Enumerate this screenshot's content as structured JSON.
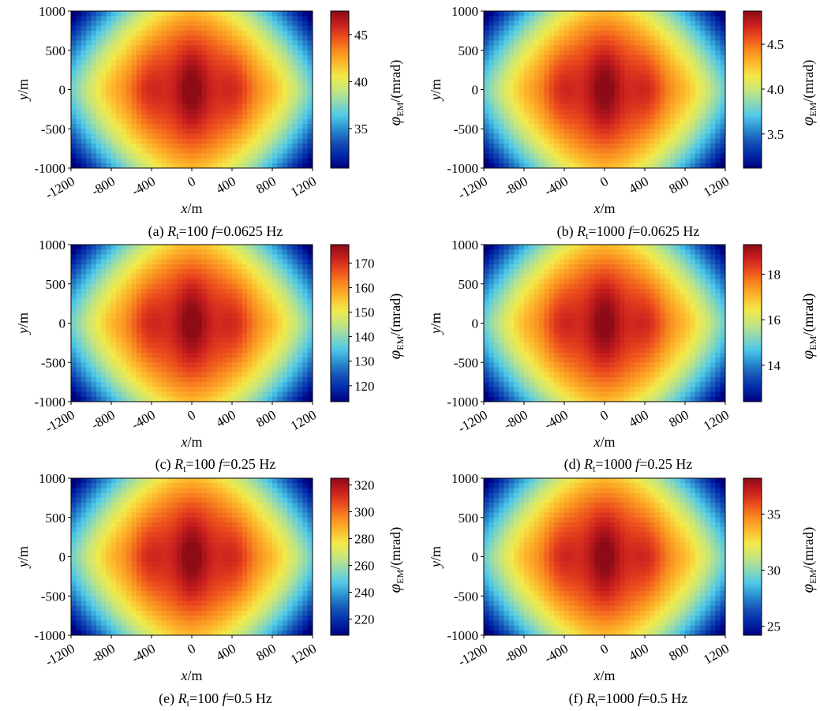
{
  "colormap": [
    "#00007f",
    "#0027a8",
    "#1652b8",
    "#2a8fd0",
    "#4fc8e8",
    "#8fd9b5",
    "#c8e67a",
    "#f2e94a",
    "#fdbb2d",
    "#f98a1f",
    "#ec4d1d",
    "#c81e1e",
    "#8c0b16"
  ],
  "chart_data": [
    {
      "id": "a",
      "type": "heatmap",
      "caption": {
        "prefix": "(a) ",
        "r_sym": "R",
        "r_sub": "t",
        "r_val": "=100 ",
        "f_sym": "f",
        "f_val": "=0.0625 Hz"
      },
      "xlabel": {
        "sym": "x",
        "unit": "/m"
      },
      "ylabel": {
        "sym": "y",
        "unit": "/m"
      },
      "cbar_label": {
        "sym": "φ",
        "sub": "EM",
        "unit": "/(mrad)"
      },
      "xlim": [
        -1200,
        1200
      ],
      "ylim": [
        -1000,
        1000
      ],
      "xticks": [
        -1200,
        -800,
        -400,
        0,
        400,
        800,
        1200
      ],
      "xtick_labels": [
        "-1200",
        "-800",
        "-400",
        "0",
        "400",
        "800",
        "1200"
      ],
      "yticks": [
        -1000,
        -500,
        0,
        500,
        1000
      ],
      "ytick_labels": [
        "-1000",
        "-500",
        "0",
        "500",
        "1000"
      ],
      "zlim": [
        30.8,
        47.5
      ],
      "cbar_ticks": [
        35,
        40,
        45
      ],
      "cbar_tick_labels": [
        "35",
        "40",
        "45"
      ]
    },
    {
      "id": "b",
      "type": "heatmap",
      "caption": {
        "prefix": "(b) ",
        "r_sym": "R",
        "r_sub": "t",
        "r_val": "=1000 ",
        "f_sym": "f",
        "f_val": "=0.0625 Hz"
      },
      "xlabel": {
        "sym": "x",
        "unit": "/m"
      },
      "ylabel": {
        "sym": "y",
        "unit": "/m"
      },
      "cbar_label": {
        "sym": "φ",
        "sub": "EM",
        "unit": "/(mrad)"
      },
      "xlim": [
        -1200,
        1200
      ],
      "ylim": [
        -1000,
        1000
      ],
      "xticks": [
        -1200,
        -800,
        -400,
        0,
        400,
        800,
        1200
      ],
      "xtick_labels": [
        "-1200",
        "-800",
        "-400",
        "0",
        "400",
        "800",
        "1200"
      ],
      "yticks": [
        -1000,
        -500,
        0,
        500,
        1000
      ],
      "ytick_labels": [
        "-1000",
        "-500",
        "0",
        "500",
        "1000"
      ],
      "zlim": [
        3.12,
        4.87
      ],
      "cbar_ticks": [
        3.5,
        4.0,
        4.5
      ],
      "cbar_tick_labels": [
        "3.5",
        "4.0",
        "4.5"
      ]
    },
    {
      "id": "c",
      "type": "heatmap",
      "caption": {
        "prefix": "(c) ",
        "r_sym": "R",
        "r_sub": "t",
        "r_val": "=100 ",
        "f_sym": "f",
        "f_val": "=0.25 Hz"
      },
      "xlabel": {
        "sym": "x",
        "unit": "/m"
      },
      "ylabel": {
        "sym": "y",
        "unit": "/m"
      },
      "cbar_label": {
        "sym": "φ",
        "sub": "EM",
        "unit": "/(mrad)"
      },
      "xlim": [
        -1200,
        1200
      ],
      "ylim": [
        -1000,
        1000
      ],
      "xticks": [
        -1200,
        -800,
        -400,
        0,
        400,
        800,
        1200
      ],
      "xtick_labels": [
        "-1200",
        "-800",
        "-400",
        "0",
        "400",
        "800",
        "1200"
      ],
      "yticks": [
        -1000,
        -500,
        0,
        500,
        1000
      ],
      "ytick_labels": [
        "-1000",
        "-500",
        "0",
        "500",
        "1000"
      ],
      "zlim": [
        113.5,
        177.5
      ],
      "cbar_ticks": [
        120,
        130,
        140,
        150,
        160,
        170
      ],
      "cbar_tick_labels": [
        "120",
        "130",
        "140",
        "150",
        "160",
        "170"
      ]
    },
    {
      "id": "d",
      "type": "heatmap",
      "caption": {
        "prefix": "(d) ",
        "r_sym": "R",
        "r_sub": "t",
        "r_val": "=1000 ",
        "f_sym": "f",
        "f_val": "=0.25 Hz"
      },
      "xlabel": {
        "sym": "x",
        "unit": "/m"
      },
      "ylabel": {
        "sym": "y",
        "unit": "/m"
      },
      "cbar_label": {
        "sym": "φ",
        "sub": "EM",
        "unit": "/(mrad)"
      },
      "xlim": [
        -1200,
        1200
      ],
      "ylim": [
        -1000,
        1000
      ],
      "xticks": [
        -1200,
        -800,
        -400,
        0,
        400,
        800,
        1200
      ],
      "xtick_labels": [
        "-1200",
        "-800",
        "-400",
        "0",
        "400",
        "800",
        "1200"
      ],
      "yticks": [
        -1000,
        -500,
        0,
        500,
        1000
      ],
      "ytick_labels": [
        "-1000",
        "-500",
        "0",
        "500",
        "1000"
      ],
      "zlim": [
        12.4,
        19.3
      ],
      "cbar_ticks": [
        14,
        16,
        18
      ],
      "cbar_tick_labels": [
        "14",
        "16",
        "18"
      ]
    },
    {
      "id": "e",
      "type": "heatmap",
      "caption": {
        "prefix": "(e) ",
        "r_sym": "R",
        "r_sub": "t",
        "r_val": "=100 ",
        "f_sym": "f",
        "f_val": "=0.5 Hz"
      },
      "xlabel": {
        "sym": "x",
        "unit": "/m"
      },
      "ylabel": {
        "sym": "y",
        "unit": "/m"
      },
      "cbar_label": {
        "sym": "φ",
        "sub": "EM",
        "unit": "/(mrad)"
      },
      "xlim": [
        -1200,
        1200
      ],
      "ylim": [
        -1000,
        1000
      ],
      "xticks": [
        -1200,
        -800,
        -400,
        0,
        400,
        800,
        1200
      ],
      "xtick_labels": [
        "-1200",
        "-800",
        "-400",
        "0",
        "400",
        "800",
        "1200"
      ],
      "yticks": [
        -1000,
        -500,
        0,
        500,
        1000
      ],
      "ytick_labels": [
        "-1000",
        "-500",
        "0",
        "500",
        "1000"
      ],
      "zlim": [
        208,
        325
      ],
      "cbar_ticks": [
        220,
        240,
        260,
        280,
        300,
        320
      ],
      "cbar_tick_labels": [
        "220",
        "240",
        "260",
        "280",
        "300",
        "320"
      ]
    },
    {
      "id": "f",
      "type": "heatmap",
      "caption": {
        "prefix": "(f) ",
        "r_sym": "R",
        "r_sub": "t",
        "r_val": "=1000 ",
        "f_sym": "f",
        "f_val": "=0.5 Hz"
      },
      "xlabel": {
        "sym": "x",
        "unit": "/m"
      },
      "ylabel": {
        "sym": "y",
        "unit": "/m"
      },
      "cbar_label": {
        "sym": "φ",
        "sub": "EM",
        "unit": "/(mrad)"
      },
      "xlim": [
        -1200,
        1200
      ],
      "ylim": [
        -1000,
        1000
      ],
      "xticks": [
        -1200,
        -800,
        -400,
        0,
        400,
        800,
        1200
      ],
      "xtick_labels": [
        "-1200",
        "-800",
        "-400",
        "0",
        "400",
        "800",
        "1200"
      ],
      "yticks": [
        -1000,
        -500,
        0,
        500,
        1000
      ],
      "ytick_labels": [
        "-1000",
        "-500",
        "0",
        "500",
        "1000"
      ],
      "zlim": [
        24.2,
        38.2
      ],
      "cbar_ticks": [
        25,
        30,
        35
      ],
      "cbar_tick_labels": [
        "25",
        "30",
        "35"
      ]
    }
  ]
}
